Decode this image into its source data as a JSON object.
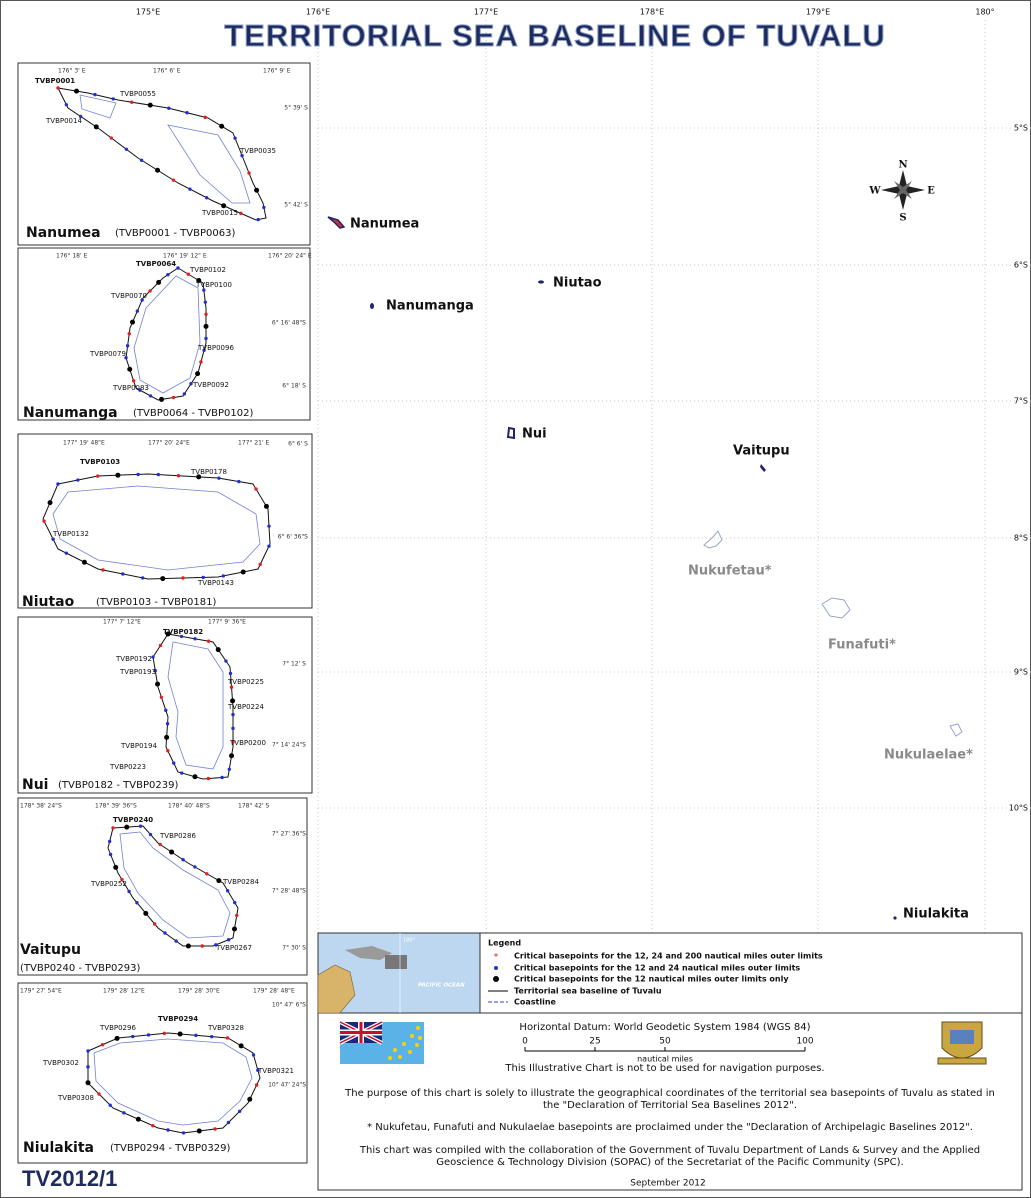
{
  "title": "TERRITORIAL SEA BASELINE OF TUVALU",
  "longitude_labels": [
    "175°E",
    "176°E",
    "177°E",
    "178°E",
    "179°E",
    "180°"
  ],
  "latitude_labels": [
    "5°S",
    "6°S",
    "7°S",
    "8°S",
    "9°S",
    "10°S"
  ],
  "compass": {
    "north": "N",
    "east": "E",
    "south": "S",
    "west": "W"
  },
  "islands": [
    "Nanumea",
    "Niutao",
    "Nanumanga",
    "Nui",
    "Vaitupu",
    "Nukufetau*",
    "Funafuti*",
    "Nukulaelae*",
    "Niulakita"
  ],
  "insets": [
    {
      "name": "Nanumea",
      "range": "(TVBP0001 - TVBP0063)",
      "coords": [
        "176° 3' E",
        "176° 6' E",
        "176° 9' E",
        "5° 39' S",
        "5° 42' S"
      ],
      "basepoints": [
        "TVBP0001",
        "TVBP0055",
        "TVBP0014",
        "TVBP0035",
        "TVBP0015"
      ]
    },
    {
      "name": "Nanumanga",
      "range": "(TVBP0064 - TVBP0102)",
      "coords": [
        "176° 18' E",
        "176° 19' 12\" E",
        "176° 20' 24\" E",
        "6° 16' 48\"S",
        "6° 18' S"
      ],
      "basepoints": [
        "TVBP0064",
        "TVBP0102",
        "TVBP0100",
        "TVBP0070",
        "TVBP0096",
        "TVBP0079",
        "TVBP0083",
        "TVBP0092"
      ]
    },
    {
      "name": "Niutao",
      "range": "(TVBP0103 - TVBP0181)",
      "coords": [
        "177° 19' 48\"E",
        "177° 20' 24\"E",
        "177° 21' E",
        "6° 6' S",
        "6° 6' 36\"S"
      ],
      "basepoints": [
        "TVBP0103",
        "TVBP0178",
        "TVBP0132",
        "TVBP0143"
      ]
    },
    {
      "name": "Nui",
      "range": "(TVBP0182 - TVBP0239)",
      "coords": [
        "177° 7' 12\"E",
        "177° 9' 36\"E",
        "7° 12' S",
        "7° 14' 24\"S"
      ],
      "basepoints": [
        "TVBP0182",
        "TVBP0192",
        "TVBP0193",
        "TVBP0225",
        "TVBP0224",
        "TVBP0194",
        "TVBP0223",
        "TVBP0200"
      ]
    },
    {
      "name": "Vaitupu",
      "range": "(TVBP0240 - TVBP0293)",
      "coords": [
        "178° 38' 24\"S",
        "178° 39' 36\"S",
        "178° 40' 48\"S",
        "178° 42' S",
        "7° 27' 36\"S",
        "7° 28' 48\"S",
        "7° 30' S"
      ],
      "basepoints": [
        "TVBP0240",
        "TVBP0286",
        "TVBP0284",
        "TVBP0252",
        "TVBP0267"
      ]
    },
    {
      "name": "Niulakita",
      "range": "(TVBP0294 - TVBP0329)",
      "coords": [
        "179° 27' 54\"E",
        "179° 28' 12\"E",
        "179° 28' 30\"E",
        "179° 28' 48\"E",
        "10° 47' 6\"S",
        "10° 47' 24\"S"
      ],
      "basepoints": [
        "TVBP0296",
        "TVBP0294",
        "TVBP0328",
        "TVBP0302",
        "TVBP0321",
        "TVBP0308"
      ]
    }
  ],
  "legend": {
    "title": "Legend",
    "items": [
      "Critical basepoints for the 12, 24 and 200 nautical miles outer limits",
      "Critical basepoints for the 12 and 24 nautical miles outer limits",
      "Critical basepoints for the 12 nautical miles outer limits only",
      "Territorial sea baseline of Tuvalu",
      "Coastline"
    ],
    "locator_labels": [
      "180°",
      "PACIFIC OCEAN"
    ]
  },
  "notes": {
    "datum": "Horizontal Datum: World Geodetic System 1984 (WGS 84)",
    "scale": {
      "values": [
        0,
        25,
        50,
        100
      ],
      "unit": "nautical miles"
    },
    "disclaimer": "This Illustrative Chart is not to be used for navigation purposes.",
    "purpose": [
      "The purpose of this chart is solely to illustrate the geographical coordinates of the territorial sea basepoints of Tuvalu as stated in",
      "the \"Declaration of Territorial Sea Baselines 2012\"."
    ],
    "asterisk_note": "* Nukufetau, Funafuti and Nukulaelae basepoints are proclaimed under the \"Declaration of Archipelagic Baselines 2012\".",
    "compilation": [
      "This chart was  compiled with the collaboration of the Government of Tuvalu Department of Lands & Survey and the Applied",
      "Geoscience & Technology Division (SOPAC) of the Secretariat of the Pacific Community (SPC)."
    ],
    "date": "September 2012"
  },
  "chart_id": "TV2012/1"
}
